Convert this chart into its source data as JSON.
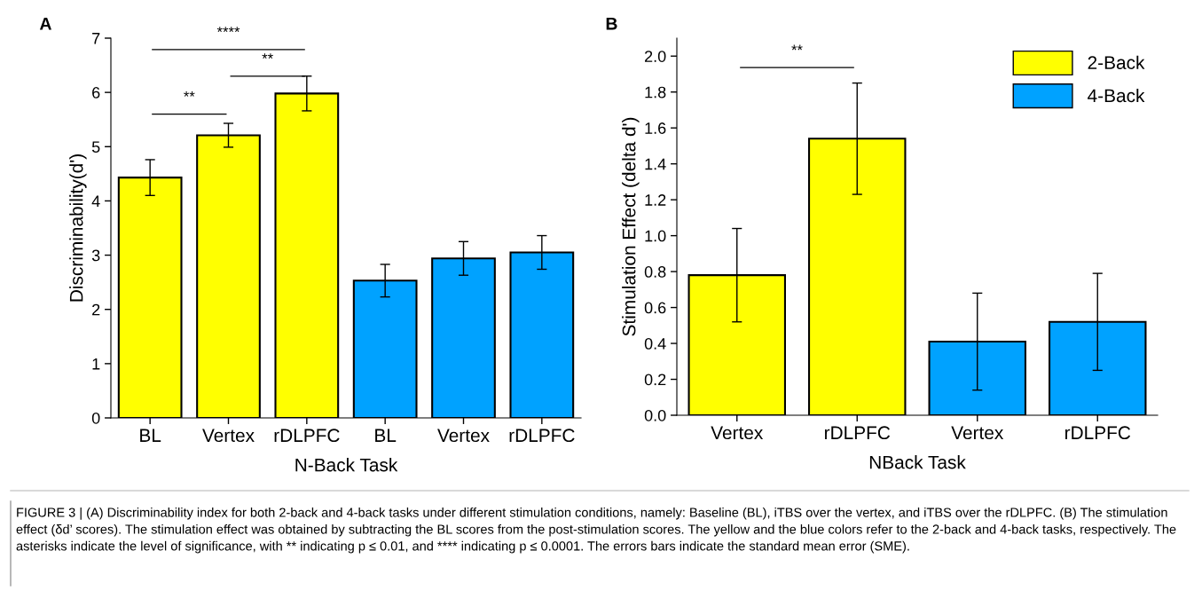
{
  "chart_data": [
    {
      "type": "bar",
      "xlabel": "N-Back Task",
      "ylabel": "Discriminability(d')",
      "categories": [
        "BL",
        "Vertex",
        "rDLPFC",
        "BL",
        "Vertex",
        "rDLPFC"
      ],
      "values": [
        4.43,
        5.21,
        5.98,
        2.53,
        2.94,
        3.05
      ],
      "errors": [
        0.33,
        0.22,
        0.32,
        0.3,
        0.31,
        0.31
      ],
      "colors": [
        "#ffff00",
        "#ffff00",
        "#ffff00",
        "#00a2ff",
        "#00a2ff",
        "#00a2ff"
      ],
      "ylim": [
        0,
        7
      ],
      "yticks": [
        0,
        1,
        2,
        3,
        4,
        5,
        6,
        7
      ],
      "grid": false,
      "legend": false,
      "annotations": [
        "A",
        "**",
        "**",
        "****",
        "FIGURE 3 | (A) Discriminability index for both 2-back and 4-back tasks under different stimulation conditions, namely: Baseline (BL), iTBS over the vertex, and iTBS over the rDLPFC. (B) The stimulation effect (δd’ scores). The stimulation effect was obtained by subtracting the BL scores from the post-stimulation scores. The yellow and the blue colors refer to the 2-back and 4-back tasks, respectively. The asterisks indicate the level of significance, with ** indicating p ≤ 0.01, and **** indicating p ≤ 0.0001. The errors bars indicate the standard mean error (SME)."
      ]
    },
    {
      "type": "bar",
      "xlabel": "NBack Task",
      "ylabel": "Stimulation Effect (delta d')",
      "categories": [
        "Vertex",
        "rDLPFC",
        "Vertex",
        "rDLPFC"
      ],
      "series": [
        {
          "name": "2-Back",
          "color": "#ffff00",
          "values": [
            0.78,
            1.54,
            null,
            null
          ],
          "errors": [
            0.26,
            0.31,
            null,
            null
          ]
        },
        {
          "name": "4-Back",
          "color": "#00a2ff",
          "values": [
            null,
            null,
            0.41,
            0.52
          ],
          "errors": [
            null,
            null,
            0.27,
            0.27
          ]
        }
      ],
      "ylim": [
        0,
        2.1
      ],
      "yticks": [
        {
          "value": 0,
          "label": "0.0"
        },
        {
          "value": 0.2,
          "label": "0.2"
        },
        {
          "value": 0.4,
          "label": "0.4"
        },
        {
          "value": 0.6,
          "label": "0.6"
        },
        {
          "value": 0.8,
          "label": "0.8"
        },
        {
          "value": 1.0,
          "label": "1.0"
        },
        {
          "value": 1.2,
          "label": "1.2"
        },
        {
          "value": 1.4,
          "label": "1.4"
        },
        {
          "value": 1.6,
          "label": "1.6"
        },
        {
          "value": 1.8,
          "label": "1.8"
        },
        {
          "value": 2.0,
          "label": "2.0"
        }
      ],
      "grid": false,
      "legend": "top right",
      "annotations": [
        "B",
        "**"
      ]
    }
  ]
}
